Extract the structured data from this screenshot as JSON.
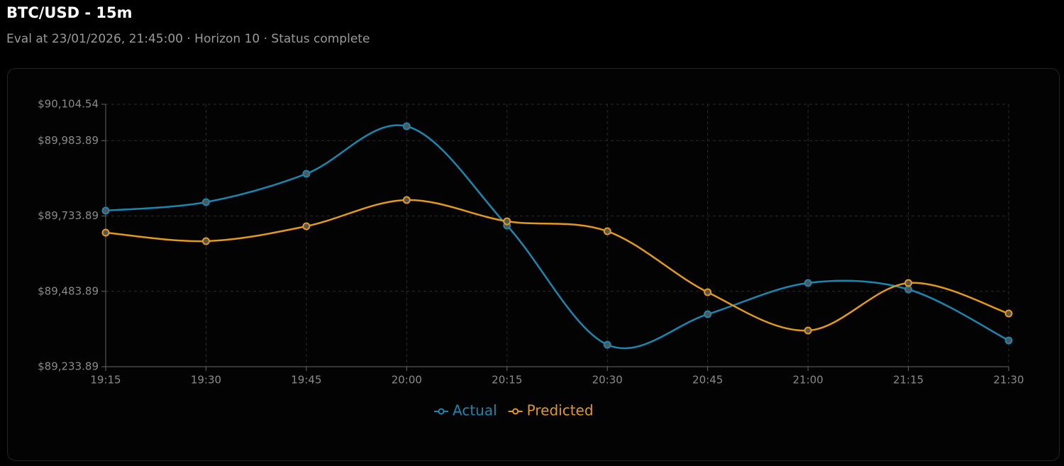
{
  "header": {
    "title": "BTC/USD - 15m",
    "subtitle": "Eval at 23/01/2026, 21:45:00 · Horizon 10 · Status complete"
  },
  "chart_data": {
    "type": "line",
    "categories": [
      "19:15",
      "19:30",
      "19:45",
      "20:00",
      "20:15",
      "20:30",
      "20:45",
      "21:00",
      "21:15",
      "21:30"
    ],
    "series": [
      {
        "name": "Actual",
        "color": "#1a87b0",
        "values": [
          89751.6,
          89779.8,
          89873.9,
          90031.6,
          89702.2,
          89306.8,
          89408.0,
          89511.5,
          89490.4,
          89321.0
        ]
      },
      {
        "name": "Predicted",
        "color": "#e39a1c",
        "values": [
          89678.6,
          89650.4,
          89699.8,
          89786.9,
          89716.3,
          89683.3,
          89481.0,
          89353.9,
          89511.5,
          89410.4
        ]
      }
    ],
    "ylim": [
      89233.89,
      90104.54
    ],
    "yticks": [
      {
        "value": 89233.89,
        "label": "$89,233.89"
      },
      {
        "value": 89483.89,
        "label": "$89,483.89"
      },
      {
        "value": 89733.89,
        "label": "$89,733.89"
      },
      {
        "value": 89983.89,
        "label": "$89,983.89"
      },
      {
        "value": 90104.54,
        "label": "$90,104.54"
      }
    ],
    "grid": true
  }
}
